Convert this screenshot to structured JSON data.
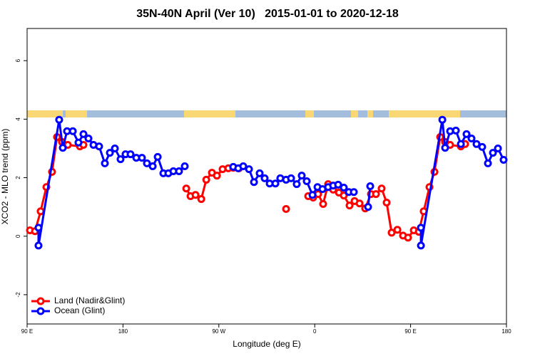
{
  "chart_data": {
    "type": "line",
    "title": "35N-40N April (Ver 10)   2015-01-01 to 2020-12-18",
    "xlabel": "Longitude (deg E)",
    "ylabel": "XCO2 - MLO trend (ppm)",
    "xlim": [
      90,
      540
    ],
    "ylim": [
      -3,
      7.1
    ],
    "xticks": [
      {
        "value": 90,
        "label": "90 E"
      },
      180,
      {
        "value": 270,
        "label": "90 W"
      },
      {
        "value": 360,
        "label": "0"
      },
      {
        "value": 450,
        "label": "90 E"
      },
      180
    ],
    "yticks": [
      -2,
      0,
      2,
      4,
      6
    ],
    "legend": "lower left",
    "series": [
      {
        "name": "Land (Nadir&Glint)",
        "color": "#ff0000",
        "x": [
          92.7,
          97.4,
          102.7,
          108.1,
          113.4,
          118.1,
          122.8,
          128.2,
          139.6,
          142.9,
          null,
          239.4,
          243.4,
          248.1,
          253.5,
          258.2,
          263.5,
          268.2,
          273.5,
          278.9,
          283.5,
          288.9,
          null,
          333.1,
          null,
          353.9,
          358.5,
          363.2,
          367.9,
          372.6,
          377.3,
          382.7,
          387.3,
          392.7,
          397.4,
          402.1,
          407.4,
          412.8,
          417.5,
          422.8,
          427.5,
          432.2,
          437.6,
          442.9,
          447.6,
          453.0,
          457.7,
          462.3,
          467.7,
          472.4,
          477.8,
          482.4,
          487.1,
          497.2,
          501.2
        ],
        "values": [
          0.2,
          0.17,
          0.85,
          1.68,
          2.2,
          3.39,
          3.22,
          3.12,
          3.07,
          3.12,
          null,
          1.63,
          1.37,
          1.41,
          1.27,
          1.93,
          2.17,
          2.07,
          2.29,
          2.32,
          2.34,
          2.32,
          null,
          0.93,
          null,
          1.37,
          1.32,
          1.44,
          1.1,
          1.78,
          1.59,
          1.49,
          1.39,
          1.05,
          1.2,
          1.12,
          0.95,
          1.44,
          1.44,
          1.63,
          1.15,
          0.12,
          0.22,
          0.02,
          -0.05,
          0.2,
          0.15,
          0.85,
          1.68,
          2.2,
          3.39,
          3.22,
          3.12,
          3.07,
          3.15
        ]
      },
      {
        "name": "Ocean (Glint)",
        "color": "#0000ff",
        "x": [
          100.7,
          100.7,
          120.1,
          123.5,
          127.5,
          132.9,
          138.2,
          142.9,
          147.6,
          152.3,
          157.6,
          163.0,
          167.7,
          172.4,
          177.7,
          182.4,
          187.1,
          192.5,
          197.8,
          202.5,
          207.9,
          212.6,
          217.9,
          222.6,
          227.3,
          232.6,
          238.0,
          null,
          283.5,
          288.2,
          292.9,
          298.3,
          303.0,
          308.3,
          313.0,
          317.7,
          323.1,
          327.7,
          333.1,
          337.8,
          343.1,
          347.8,
          352.5,
          357.9,
          362.6,
          367.3,
          372.6,
          377.3,
          382.0,
          387.3,
          392.0,
          396.7,
          null,
          410.1,
          412.1,
          null,
          459.7,
          459.7,
          479.8,
          482.4,
          487.1,
          492.5,
          497.2,
          502.5,
          507.2,
          511.9,
          517.2,
          522.6,
          527.3,
          532.0,
          537.3
        ],
        "values": [
          0.29,
          -0.32,
          3.98,
          3.02,
          3.59,
          3.59,
          3.2,
          3.49,
          3.34,
          3.12,
          3.07,
          2.49,
          2.85,
          3.0,
          2.63,
          2.8,
          2.8,
          2.68,
          2.68,
          2.49,
          2.39,
          2.71,
          2.15,
          2.15,
          2.22,
          2.22,
          2.39,
          null,
          2.37,
          2.32,
          2.39,
          2.29,
          1.85,
          2.15,
          1.98,
          1.8,
          1.8,
          1.98,
          1.93,
          1.98,
          1.78,
          2.07,
          1.88,
          1.41,
          1.68,
          1.61,
          1.68,
          1.73,
          1.76,
          1.66,
          1.51,
          1.51,
          null,
          1.0,
          1.71,
          null,
          0.29,
          -0.32,
          3.98,
          3.02,
          3.59,
          3.61,
          3.15,
          3.49,
          3.34,
          3.15,
          3.05,
          2.49,
          2.85,
          3.0,
          2.61
        ]
      }
    ]
  }
}
